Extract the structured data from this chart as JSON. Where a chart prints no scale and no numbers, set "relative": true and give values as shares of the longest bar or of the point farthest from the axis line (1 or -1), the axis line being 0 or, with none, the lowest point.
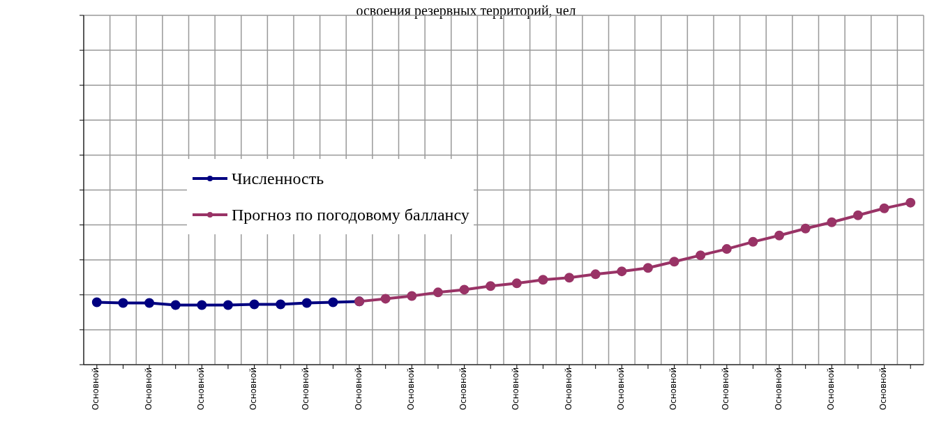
{
  "chart_data": {
    "type": "line",
    "title": "освоения резервных территорий, чел",
    "relative": true,
    "categories": [
      "Основной",
      null,
      "Основной",
      null,
      "Основной",
      null,
      "Основной",
      null,
      "Основной",
      null,
      "Основной",
      null,
      "Основной",
      null,
      "Основной",
      null,
      "Основной",
      null,
      "Основной",
      null,
      "Основной",
      null,
      "Основной",
      null,
      "Основной",
      null,
      "Основной",
      null,
      "Основной",
      null,
      "Основной",
      null
    ],
    "series": [
      {
        "name": "Численность",
        "color": "#000080",
        "values": [
          0.385,
          0.381,
          0.381,
          0.368,
          0.368,
          0.368,
          0.372,
          0.372,
          0.381,
          0.385,
          0.39,
          null,
          null,
          null,
          null,
          null,
          null,
          null,
          null,
          null,
          null,
          null,
          null,
          null,
          null,
          null,
          null,
          null,
          null,
          null,
          null,
          null
        ]
      },
      {
        "name": "Прогноз по погодовому баллансу",
        "color": "#993366",
        "values": [
          null,
          null,
          null,
          null,
          null,
          null,
          null,
          null,
          null,
          null,
          0.39,
          0.407,
          0.424,
          0.446,
          0.463,
          0.485,
          0.502,
          0.524,
          0.537,
          0.558,
          0.576,
          0.597,
          0.636,
          0.675,
          0.714,
          0.758,
          0.797,
          0.84,
          0.879,
          0.922,
          0.965,
          1
        ]
      }
    ],
    "grid": true,
    "legend": "left",
    "marker": "circle",
    "line_style": "solid"
  }
}
